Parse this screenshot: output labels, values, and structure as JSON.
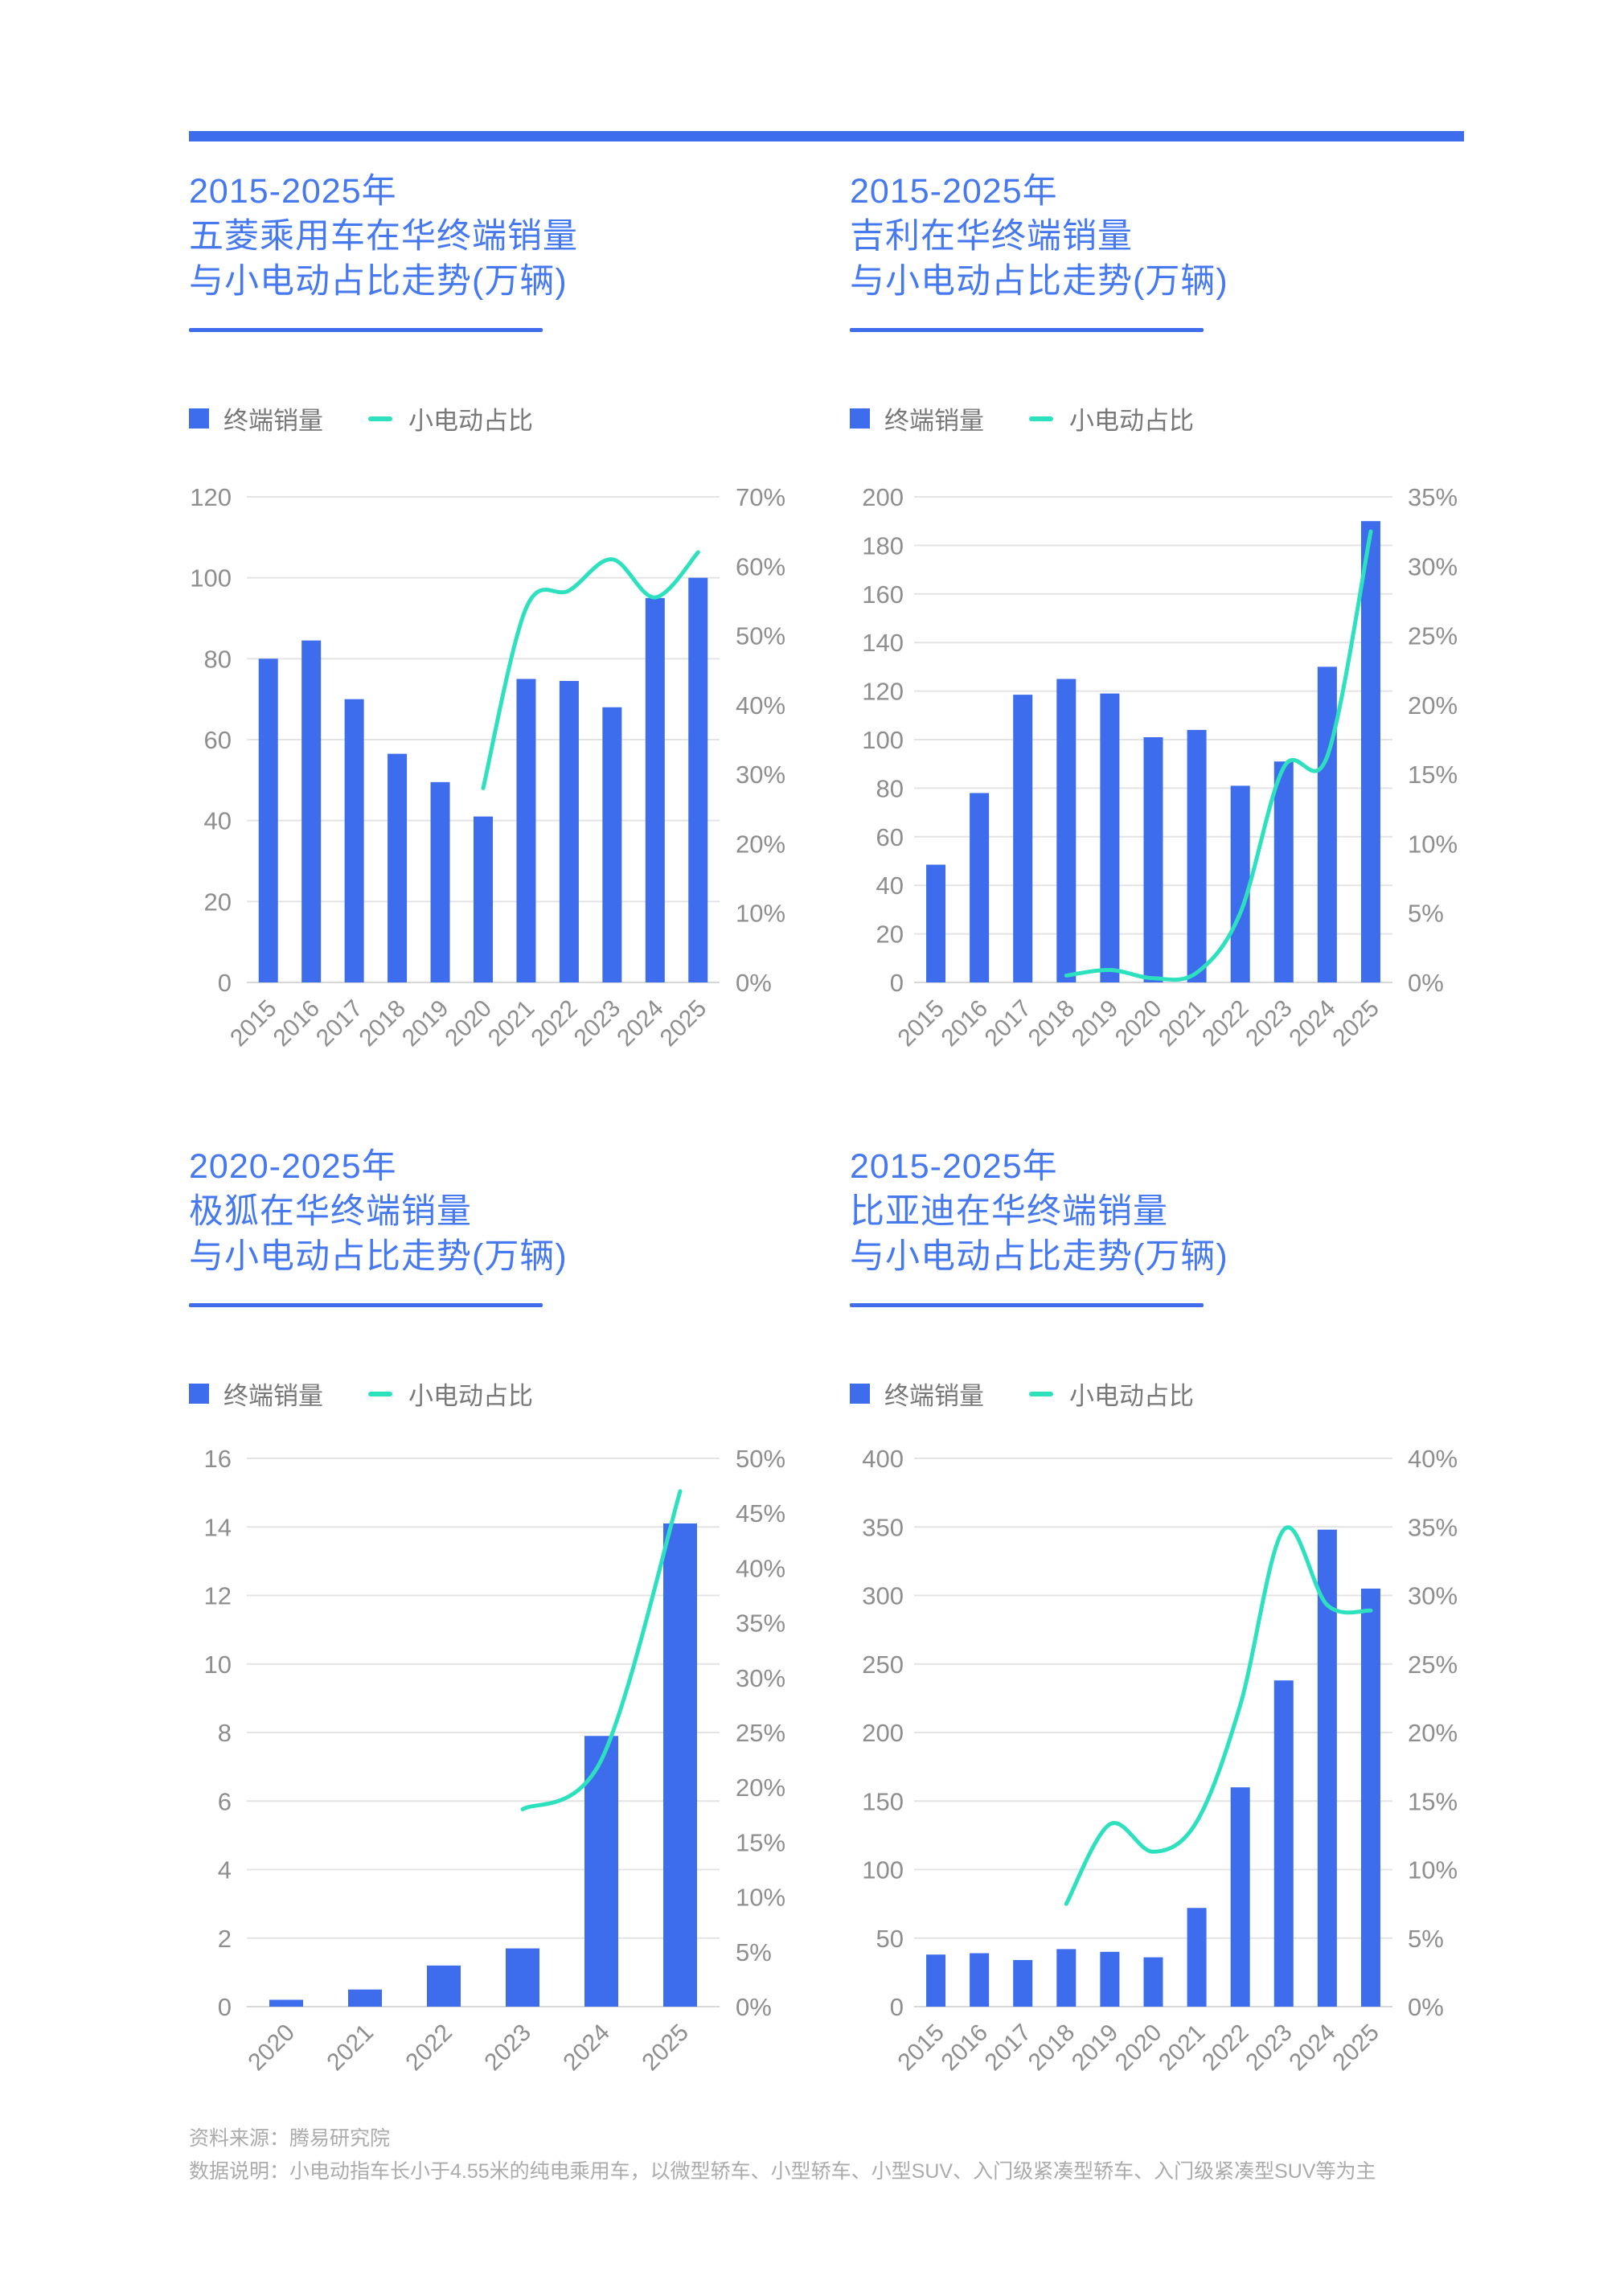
{
  "colors": {
    "accent_blue": "#3d6cec",
    "title_blue": "#4679f0",
    "line_teal": "#2de1be",
    "gridline": "#e4e4e4",
    "axis_label_gray": "#8e8e8e"
  },
  "footer": {
    "source": "资料来源：腾易研究院",
    "note": "数据说明：小电动指车长小于4.55米的纯电乘用车，以微型轿车、小型轿车、小型SUV、入门级紧凑型轿车、入门级紧凑型SUV等为主"
  },
  "chart_data": [
    {
      "id": "wuling",
      "type": "bar+line",
      "title_line1": "2015-2025年",
      "title_line2": "五菱乘用车在华终端销量",
      "title_line3": "与小电动占比走势(万辆)",
      "legend_bar": "终端销量",
      "legend_line": "小电动占比",
      "categories": [
        "2015",
        "2016",
        "2017",
        "2018",
        "2019",
        "2020",
        "2021",
        "2022",
        "2023",
        "2024",
        "2025"
      ],
      "series": [
        {
          "name": "终端销量",
          "type": "bar",
          "axis": "left",
          "values": [
            80,
            84.5,
            70,
            56.5,
            49.5,
            41,
            75,
            74.5,
            68,
            95,
            100
          ]
        },
        {
          "name": "小电动占比",
          "type": "line",
          "axis": "right",
          "values": [
            null,
            null,
            null,
            null,
            null,
            28,
            54,
            56.5,
            61,
            55.5,
            62
          ]
        }
      ],
      "left_axis": {
        "min": 0,
        "max": 120,
        "step": 20
      },
      "right_axis": {
        "min": 0,
        "max": 70,
        "step": 10,
        "suffix": "%"
      },
      "grid": true,
      "legend_position": "top-left"
    },
    {
      "id": "geely",
      "type": "bar+line",
      "title_line1": "2015-2025年",
      "title_line2": "吉利在华终端销量",
      "title_line3": "与小电动占比走势(万辆)",
      "legend_bar": "终端销量",
      "legend_line": "小电动占比",
      "categories": [
        "2015",
        "2016",
        "2017",
        "2018",
        "2019",
        "2020",
        "2021",
        "2022",
        "2023",
        "2024",
        "2025"
      ],
      "series": [
        {
          "name": "终端销量",
          "type": "bar",
          "axis": "left",
          "values": [
            48.5,
            78,
            118.5,
            125,
            119,
            101,
            104,
            81,
            91,
            130,
            190
          ]
        },
        {
          "name": "小电动占比",
          "type": "line",
          "axis": "right",
          "values": [
            null,
            null,
            null,
            0.5,
            0.9,
            0.3,
            0.7,
            5,
            15.5,
            16.3,
            32.5
          ]
        }
      ],
      "left_axis": {
        "min": 0,
        "max": 200,
        "step": 20
      },
      "right_axis": {
        "min": 0,
        "max": 35,
        "step": 5,
        "suffix": "%"
      },
      "grid": true,
      "legend_position": "top-left"
    },
    {
      "id": "arcfox",
      "type": "bar+line",
      "title_line1": "2020-2025年",
      "title_line2": "极狐在华终端销量",
      "title_line3": "与小电动占比走势(万辆)",
      "legend_bar": "终端销量",
      "legend_line": "小电动占比",
      "categories": [
        "2020",
        "2021",
        "2022",
        "2023",
        "2024",
        "2025"
      ],
      "series": [
        {
          "name": "终端销量",
          "type": "bar",
          "axis": "left",
          "values": [
            0.2,
            0.5,
            1.2,
            1.7,
            7.9,
            14.1
          ]
        },
        {
          "name": "小电动占比",
          "type": "line",
          "axis": "right",
          "values": [
            null,
            null,
            null,
            18,
            22.5,
            47
          ]
        }
      ],
      "left_axis": {
        "min": 0,
        "max": 16,
        "step": 2
      },
      "right_axis": {
        "min": 0,
        "max": 50,
        "step": 5,
        "suffix": "%"
      },
      "grid": true,
      "legend_position": "top-left"
    },
    {
      "id": "byd",
      "type": "bar+line",
      "title_line1": "2015-2025年",
      "title_line2": "比亚迪在华终端销量",
      "title_line3": "与小电动占比走势(万辆)",
      "legend_bar": "终端销量",
      "legend_line": "小电动占比",
      "categories": [
        "2015",
        "2016",
        "2017",
        "2018",
        "2019",
        "2020",
        "2021",
        "2022",
        "2023",
        "2024",
        "2025"
      ],
      "series": [
        {
          "name": "终端销量",
          "type": "bar",
          "axis": "left",
          "values": [
            38,
            39,
            34,
            42,
            40,
            36,
            72,
            160,
            238,
            348,
            305
          ]
        },
        {
          "name": "小电动占比",
          "type": "line",
          "axis": "right",
          "values": [
            null,
            null,
            null,
            7.5,
            13.3,
            11.3,
            13.5,
            22,
            34.8,
            29.3,
            28.9
          ]
        }
      ],
      "left_axis": {
        "min": 0,
        "max": 400,
        "step": 50
      },
      "right_axis": {
        "min": 0,
        "max": 40,
        "step": 5,
        "suffix": "%"
      },
      "grid": true,
      "legend_position": "top-left"
    }
  ]
}
